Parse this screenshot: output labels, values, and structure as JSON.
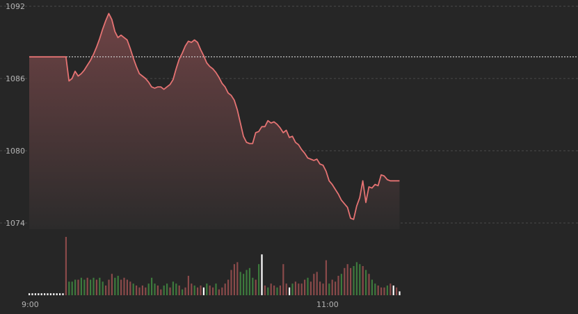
{
  "chart_data": {
    "type": "line",
    "title": "",
    "xlabel": "",
    "ylabel": "",
    "ylim": [
      1073,
      1092.2
    ],
    "y_ticks": [
      "1092",
      "1086",
      "1080",
      "1074"
    ],
    "x_ticks": [
      "9:00",
      "11:00"
    ],
    "x_range": [
      "9:00",
      "11:40"
    ],
    "reference_price": 1087.8,
    "grid": "horizontal dashed",
    "colors": {
      "background": "#262626",
      "price_line": "#e57373",
      "area_top": "#6e4345",
      "area_bottom": "#2c2b2b",
      "grid": "#4a4a4a",
      "reference_line": "#d8d8d8",
      "volume_up": "#3d7a3d",
      "volume_down": "#8a4a4a",
      "volume_neutral": "#ffffff",
      "axis_text": "#b4b4b4"
    },
    "series": [
      {
        "values": [
          [
            0,
            1087.8
          ],
          [
            12,
            1087.8
          ],
          [
            13,
            1085.8
          ],
          [
            14,
            1086.0
          ],
          [
            15,
            1086.6
          ],
          [
            16,
            1086.2
          ],
          [
            17,
            1086.4
          ],
          [
            18,
            1086.7
          ],
          [
            19,
            1087.1
          ],
          [
            20,
            1087.5
          ],
          [
            21,
            1088.0
          ],
          [
            22,
            1088.6
          ],
          [
            23,
            1089.3
          ],
          [
            24,
            1090.1
          ],
          [
            25,
            1090.8
          ],
          [
            26,
            1091.4
          ],
          [
            27,
            1090.9
          ],
          [
            28,
            1089.9
          ],
          [
            29,
            1089.4
          ],
          [
            30,
            1089.6
          ],
          [
            31,
            1089.4
          ],
          [
            32,
            1089.2
          ],
          [
            33,
            1088.5
          ],
          [
            34,
            1087.7
          ],
          [
            35,
            1087.0
          ],
          [
            36,
            1086.4
          ],
          [
            37,
            1086.2
          ],
          [
            38,
            1086.0
          ],
          [
            39,
            1085.7
          ],
          [
            40,
            1085.3
          ],
          [
            41,
            1085.2
          ],
          [
            42,
            1085.3
          ],
          [
            43,
            1085.3
          ],
          [
            44,
            1085.1
          ],
          [
            45,
            1085.3
          ],
          [
            46,
            1085.5
          ],
          [
            47,
            1085.9
          ],
          [
            48,
            1086.8
          ],
          [
            49,
            1087.6
          ],
          [
            50,
            1088.1
          ],
          [
            51,
            1088.7
          ],
          [
            52,
            1089.1
          ],
          [
            53,
            1089.0
          ],
          [
            54,
            1089.2
          ],
          [
            55,
            1089.0
          ],
          [
            56,
            1088.4
          ],
          [
            57,
            1087.9
          ],
          [
            58,
            1087.3
          ],
          [
            59,
            1087.0
          ],
          [
            60,
            1086.8
          ],
          [
            61,
            1086.5
          ],
          [
            62,
            1086.1
          ],
          [
            63,
            1085.6
          ],
          [
            64,
            1085.3
          ],
          [
            65,
            1084.8
          ],
          [
            66,
            1084.6
          ],
          [
            67,
            1084.2
          ],
          [
            68,
            1083.4
          ],
          [
            69,
            1082.3
          ],
          [
            70,
            1081.2
          ],
          [
            71,
            1080.7
          ],
          [
            72,
            1080.6
          ],
          [
            73,
            1080.6
          ],
          [
            74,
            1081.5
          ],
          [
            75,
            1081.6
          ],
          [
            76,
            1082.0
          ],
          [
            77,
            1082.0
          ],
          [
            78,
            1082.5
          ],
          [
            79,
            1082.3
          ],
          [
            80,
            1082.4
          ],
          [
            81,
            1082.2
          ],
          [
            82,
            1081.9
          ],
          [
            83,
            1081.5
          ],
          [
            84,
            1081.7
          ],
          [
            85,
            1081.1
          ],
          [
            86,
            1081.2
          ],
          [
            87,
            1080.7
          ],
          [
            88,
            1080.5
          ],
          [
            89,
            1080.1
          ],
          [
            90,
            1079.8
          ],
          [
            91,
            1079.4
          ],
          [
            92,
            1079.3
          ],
          [
            93,
            1079.2
          ],
          [
            94,
            1079.3
          ],
          [
            95,
            1078.9
          ],
          [
            96,
            1078.8
          ],
          [
            97,
            1078.3
          ],
          [
            98,
            1077.5
          ],
          [
            99,
            1077.2
          ],
          [
            100,
            1076.8
          ],
          [
            101,
            1076.4
          ],
          [
            102,
            1075.9
          ],
          [
            103,
            1075.6
          ],
          [
            104,
            1075.3
          ],
          [
            105,
            1074.4
          ],
          [
            106,
            1074.3
          ],
          [
            107,
            1075.4
          ],
          [
            108,
            1076.1
          ],
          [
            109,
            1077.5
          ],
          [
            110,
            1075.7
          ],
          [
            111,
            1077.0
          ],
          [
            112,
            1076.9
          ],
          [
            113,
            1077.2
          ],
          [
            114,
            1077.1
          ],
          [
            115,
            1078.0
          ],
          [
            116,
            1077.9
          ],
          [
            117,
            1077.6
          ],
          [
            118,
            1077.5
          ],
          [
            119,
            1077.5
          ],
          [
            120,
            1077.5
          ],
          [
            121,
            1077.5
          ]
        ]
      }
    ],
    "volume": {
      "values": [
        [
          0,
          1,
          0
        ],
        [
          1,
          1,
          0
        ],
        [
          2,
          1,
          0
        ],
        [
          3,
          1,
          0
        ],
        [
          4,
          1,
          0
        ],
        [
          5,
          1,
          0
        ],
        [
          6,
          1,
          0
        ],
        [
          7,
          1,
          0
        ],
        [
          8,
          1,
          0
        ],
        [
          9,
          1,
          0
        ],
        [
          10,
          1,
          0
        ],
        [
          11,
          1,
          0
        ],
        [
          12,
          30,
          -1
        ],
        [
          13,
          7,
          1
        ],
        [
          14,
          7,
          1
        ],
        [
          15,
          8,
          1
        ],
        [
          16,
          8,
          -1
        ],
        [
          17,
          9,
          1
        ],
        [
          18,
          8,
          1
        ],
        [
          19,
          9,
          -1
        ],
        [
          20,
          8,
          1
        ],
        [
          21,
          9,
          1
        ],
        [
          22,
          8,
          -1
        ],
        [
          23,
          9,
          1
        ],
        [
          24,
          7,
          1
        ],
        [
          25,
          5,
          -1
        ],
        [
          26,
          8,
          -1
        ],
        [
          27,
          11,
          -1
        ],
        [
          28,
          9,
          1
        ],
        [
          29,
          10,
          1
        ],
        [
          30,
          8,
          -1
        ],
        [
          31,
          9,
          -1
        ],
        [
          32,
          8,
          -1
        ],
        [
          33,
          7,
          -1
        ],
        [
          34,
          6,
          1
        ],
        [
          35,
          5,
          -1
        ],
        [
          36,
          4,
          -1
        ],
        [
          37,
          5,
          -1
        ],
        [
          38,
          4,
          -1
        ],
        [
          39,
          6,
          1
        ],
        [
          40,
          9,
          1
        ],
        [
          41,
          6,
          1
        ],
        [
          42,
          5,
          -1
        ],
        [
          43,
          3,
          -1
        ],
        [
          44,
          5,
          1
        ],
        [
          45,
          6,
          1
        ],
        [
          46,
          4,
          -1
        ],
        [
          47,
          7,
          1
        ],
        [
          48,
          6,
          1
        ],
        [
          49,
          5,
          -1
        ],
        [
          50,
          3,
          1
        ],
        [
          51,
          4,
          -1
        ],
        [
          52,
          10,
          -1
        ],
        [
          53,
          6,
          -1
        ],
        [
          54,
          5,
          1
        ],
        [
          55,
          4,
          -1
        ],
        [
          56,
          5,
          -1
        ],
        [
          57,
          4,
          0
        ],
        [
          58,
          6,
          1
        ],
        [
          59,
          5,
          -1
        ],
        [
          60,
          4,
          -1
        ],
        [
          61,
          6,
          1
        ],
        [
          62,
          3,
          -1
        ],
        [
          63,
          4,
          -1
        ],
        [
          64,
          6,
          -1
        ],
        [
          65,
          8,
          -1
        ],
        [
          66,
          13,
          -1
        ],
        [
          67,
          16,
          -1
        ],
        [
          68,
          17,
          -1
        ],
        [
          69,
          12,
          1
        ],
        [
          70,
          11,
          1
        ],
        [
          71,
          13,
          1
        ],
        [
          72,
          14,
          1
        ],
        [
          73,
          9,
          1
        ],
        [
          74,
          8,
          -1
        ],
        [
          75,
          16,
          1
        ],
        [
          76,
          21,
          0
        ],
        [
          77,
          5,
          -1
        ],
        [
          78,
          4,
          1
        ],
        [
          79,
          6,
          -1
        ],
        [
          80,
          5,
          -1
        ],
        [
          81,
          4,
          1
        ],
        [
          82,
          5,
          -1
        ],
        [
          83,
          16,
          -1
        ],
        [
          84,
          6,
          -1
        ],
        [
          85,
          4,
          0
        ],
        [
          86,
          6,
          1
        ],
        [
          87,
          7,
          -1
        ],
        [
          88,
          6,
          -1
        ],
        [
          89,
          6,
          -1
        ],
        [
          90,
          8,
          -1
        ],
        [
          91,
          9,
          1
        ],
        [
          92,
          7,
          -1
        ],
        [
          93,
          11,
          -1
        ],
        [
          94,
          12,
          -1
        ],
        [
          95,
          7,
          -1
        ],
        [
          96,
          6,
          -1
        ],
        [
          97,
          18,
          -1
        ],
        [
          98,
          6,
          1
        ],
        [
          99,
          8,
          -1
        ],
        [
          100,
          7,
          -1
        ],
        [
          101,
          10,
          -1
        ],
        [
          102,
          11,
          1
        ],
        [
          103,
          14,
          -1
        ],
        [
          104,
          16,
          -1
        ],
        [
          105,
          14,
          -1
        ],
        [
          106,
          15,
          1
        ],
        [
          107,
          17,
          1
        ],
        [
          108,
          16,
          1
        ],
        [
          109,
          15,
          -1
        ],
        [
          110,
          13,
          1
        ],
        [
          111,
          11,
          -1
        ],
        [
          112,
          8,
          1
        ],
        [
          113,
          6,
          1
        ],
        [
          114,
          5,
          -1
        ],
        [
          115,
          4,
          -1
        ],
        [
          116,
          4,
          -1
        ],
        [
          117,
          5,
          1
        ],
        [
          118,
          6,
          -1
        ],
        [
          119,
          5,
          0
        ],
        [
          120,
          4,
          -1
        ],
        [
          121,
          2,
          0
        ]
      ]
    }
  }
}
